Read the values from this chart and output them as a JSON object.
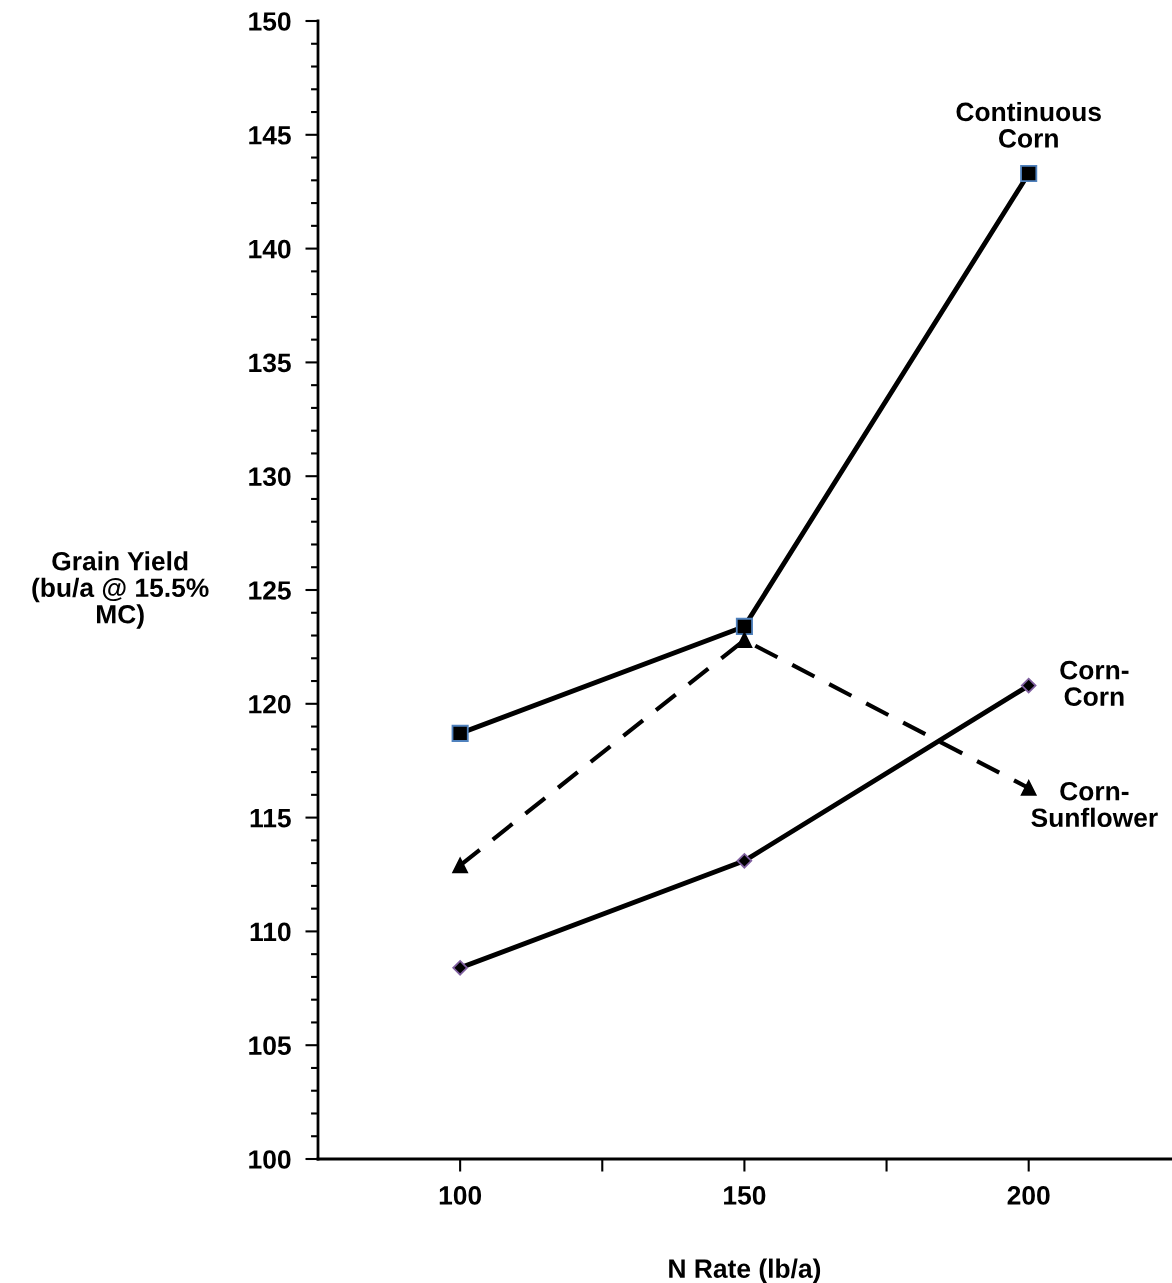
{
  "chart_data": {
    "type": "line",
    "xlabel": "N Rate (lb/a)",
    "ylabel": "Grain Yield\n(bu/a @ 15.5%\nMC)",
    "x": [
      100,
      150,
      200
    ],
    "series": [
      {
        "name": "Continuous\nCorn",
        "color": "#000000",
        "values": [
          118.7,
          123.4,
          143.3
        ],
        "marker": "square",
        "line_style": "solid"
      },
      {
        "name": "Corn-\nCorn",
        "color": "#000000",
        "values": [
          108.4,
          113.1,
          120.8
        ],
        "marker": "diamond",
        "line_style": "solid"
      },
      {
        "name": "Corn-\nSunflower",
        "color": "#000000",
        "values": [
          112.9,
          122.8,
          116.3
        ],
        "marker": "triangle",
        "line_style": "dashed"
      }
    ],
    "xlim": [
      75,
      225
    ],
    "xticks": [
      100,
      {
        "value": 125,
        "label": null
      },
      150,
      {
        "value": 175,
        "label": null
      },
      200
    ],
    "ylim": [
      100,
      150
    ],
    "yticks": [
      100,
      105,
      110,
      115,
      120,
      125,
      130,
      135,
      140,
      145,
      150
    ],
    "grid": false,
    "legend": false
  }
}
